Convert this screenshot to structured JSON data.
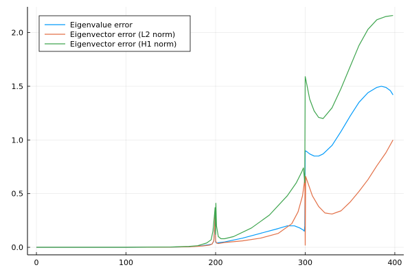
{
  "chart_data": {
    "type": "line",
    "title": "",
    "xlabel": "",
    "ylabel": "",
    "xlim": [
      -10,
      410
    ],
    "ylim": [
      -0.07,
      2.24
    ],
    "xticks": [
      0,
      100,
      200,
      300,
      400
    ],
    "yticks": [
      0.0,
      0.5,
      1.0,
      1.5,
      2.0
    ],
    "xtick_labels": [
      "0",
      "100",
      "200",
      "300",
      "400"
    ],
    "ytick_labels": [
      "0.0",
      "0.5",
      "1.0",
      "1.5",
      "2.0"
    ],
    "grid": true,
    "legend_position": "top-left",
    "series": [
      {
        "name": "Eigenvalue error",
        "color": "#009AFA",
        "points": [
          [
            0,
            0
          ],
          [
            50,
            0
          ],
          [
            100,
            0
          ],
          [
            150,
            0.002
          ],
          [
            170,
            0.006
          ],
          [
            185,
            0.015
          ],
          [
            193,
            0.025
          ],
          [
            196,
            0.03
          ],
          [
            198,
            0.06
          ],
          [
            199,
            0.2
          ],
          [
            199.6,
            0.3
          ],
          [
            200,
            0.05
          ],
          [
            201,
            0.04
          ],
          [
            205,
            0.045
          ],
          [
            210,
            0.05
          ],
          [
            230,
            0.085
          ],
          [
            250,
            0.13
          ],
          [
            270,
            0.175
          ],
          [
            280,
            0.2
          ],
          [
            288,
            0.2
          ],
          [
            294,
            0.18
          ],
          [
            298,
            0.16
          ],
          [
            299,
            0.15
          ],
          [
            299.5,
            0.2
          ],
          [
            300,
            0.9
          ],
          [
            302,
            0.89
          ],
          [
            305,
            0.87
          ],
          [
            310,
            0.85
          ],
          [
            315,
            0.85
          ],
          [
            320,
            0.87
          ],
          [
            330,
            0.95
          ],
          [
            340,
            1.08
          ],
          [
            350,
            1.22
          ],
          [
            360,
            1.35
          ],
          [
            370,
            1.44
          ],
          [
            380,
            1.49
          ],
          [
            385,
            1.5
          ],
          [
            390,
            1.49
          ],
          [
            395,
            1.46
          ],
          [
            398,
            1.42
          ]
        ]
      },
      {
        "name": "Eigenvector error (L2 norm)",
        "color": "#E26F46",
        "points": [
          [
            0,
            0
          ],
          [
            50,
            0
          ],
          [
            100,
            0
          ],
          [
            150,
            0.002
          ],
          [
            170,
            0.005
          ],
          [
            185,
            0.012
          ],
          [
            193,
            0.02
          ],
          [
            196,
            0.03
          ],
          [
            198,
            0.06
          ],
          [
            199,
            0.2
          ],
          [
            199.6,
            0.33
          ],
          [
            200,
            0.06
          ],
          [
            201,
            0.04
          ],
          [
            203,
            0.035
          ],
          [
            210,
            0.045
          ],
          [
            230,
            0.06
          ],
          [
            250,
            0.085
          ],
          [
            270,
            0.13
          ],
          [
            285,
            0.22
          ],
          [
            292,
            0.33
          ],
          [
            297,
            0.48
          ],
          [
            299,
            0.6
          ],
          [
            299.6,
            0.68
          ],
          [
            300,
            0.02
          ],
          [
            300.5,
            0.66
          ],
          [
            303,
            0.6
          ],
          [
            308,
            0.48
          ],
          [
            315,
            0.38
          ],
          [
            322,
            0.32
          ],
          [
            330,
            0.31
          ],
          [
            340,
            0.34
          ],
          [
            350,
            0.42
          ],
          [
            360,
            0.52
          ],
          [
            370,
            0.63
          ],
          [
            380,
            0.76
          ],
          [
            390,
            0.88
          ],
          [
            398,
            1.0
          ]
        ]
      },
      {
        "name": "Eigenvector error (H1 norm)",
        "color": "#3DA44D",
        "points": [
          [
            0,
            0
          ],
          [
            50,
            0
          ],
          [
            100,
            0
          ],
          [
            150,
            0.003
          ],
          [
            170,
            0.008
          ],
          [
            180,
            0.015
          ],
          [
            190,
            0.04
          ],
          [
            195,
            0.07
          ],
          [
            197,
            0.15
          ],
          [
            198.5,
            0.28
          ],
          [
            199.4,
            0.37
          ],
          [
            200,
            0.12
          ],
          [
            200.3,
            0.41
          ],
          [
            201,
            0.2
          ],
          [
            203,
            0.1
          ],
          [
            206,
            0.08
          ],
          [
            210,
            0.08
          ],
          [
            220,
            0.1
          ],
          [
            240,
            0.18
          ],
          [
            260,
            0.3
          ],
          [
            280,
            0.48
          ],
          [
            290,
            0.6
          ],
          [
            296,
            0.7
          ],
          [
            298,
            0.74
          ],
          [
            299.5,
            0.6
          ],
          [
            300,
            1.59
          ],
          [
            301,
            1.55
          ],
          [
            305,
            1.38
          ],
          [
            310,
            1.27
          ],
          [
            315,
            1.21
          ],
          [
            320,
            1.2
          ],
          [
            330,
            1.3
          ],
          [
            340,
            1.48
          ],
          [
            350,
            1.68
          ],
          [
            360,
            1.88
          ],
          [
            370,
            2.03
          ],
          [
            380,
            2.12
          ],
          [
            390,
            2.15
          ],
          [
            398,
            2.16
          ]
        ]
      }
    ]
  }
}
